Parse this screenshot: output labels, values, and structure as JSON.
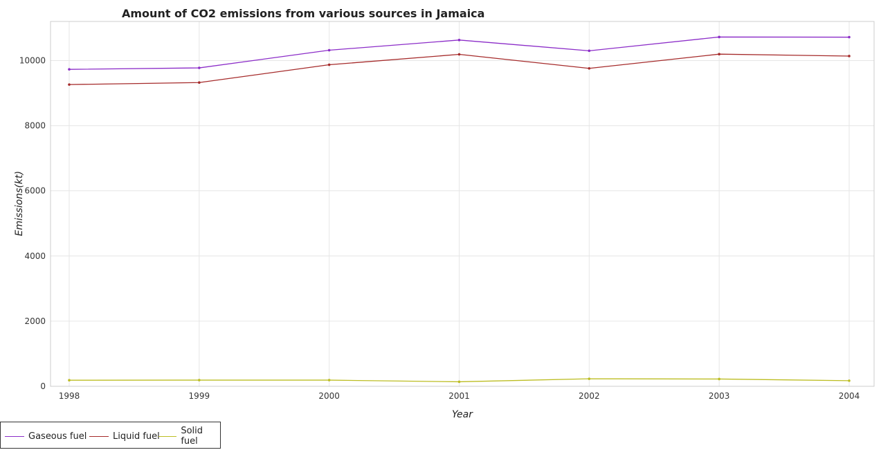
{
  "chart_data": {
    "type": "line",
    "title": "Amount of CO2 emissions from various sources in Jamaica",
    "xlabel": "Year",
    "ylabel": "Emissions(kt)",
    "x": [
      "1998",
      "1999",
      "2000",
      "2001",
      "2002",
      "2003",
      "2004"
    ],
    "ylim": [
      0,
      11200
    ],
    "yticks": [
      0,
      2000,
      4000,
      6000,
      8000,
      10000
    ],
    "grid": true,
    "legend_position": "bottom-left",
    "series": [
      {
        "name": "Gaseous fuel",
        "color": "#8b2cc8",
        "values": [
          9730,
          9775,
          10318,
          10630,
          10300,
          10723,
          10718
        ]
      },
      {
        "name": "Liquid fuel",
        "color": "#a52a2a",
        "values": [
          9263,
          9325,
          9871,
          10190,
          9760,
          10197,
          10138
        ]
      },
      {
        "name": "Solid fuel",
        "color": "#bcbd22",
        "values": [
          187,
          190,
          190,
          139,
          231,
          224,
          172
        ]
      }
    ]
  }
}
